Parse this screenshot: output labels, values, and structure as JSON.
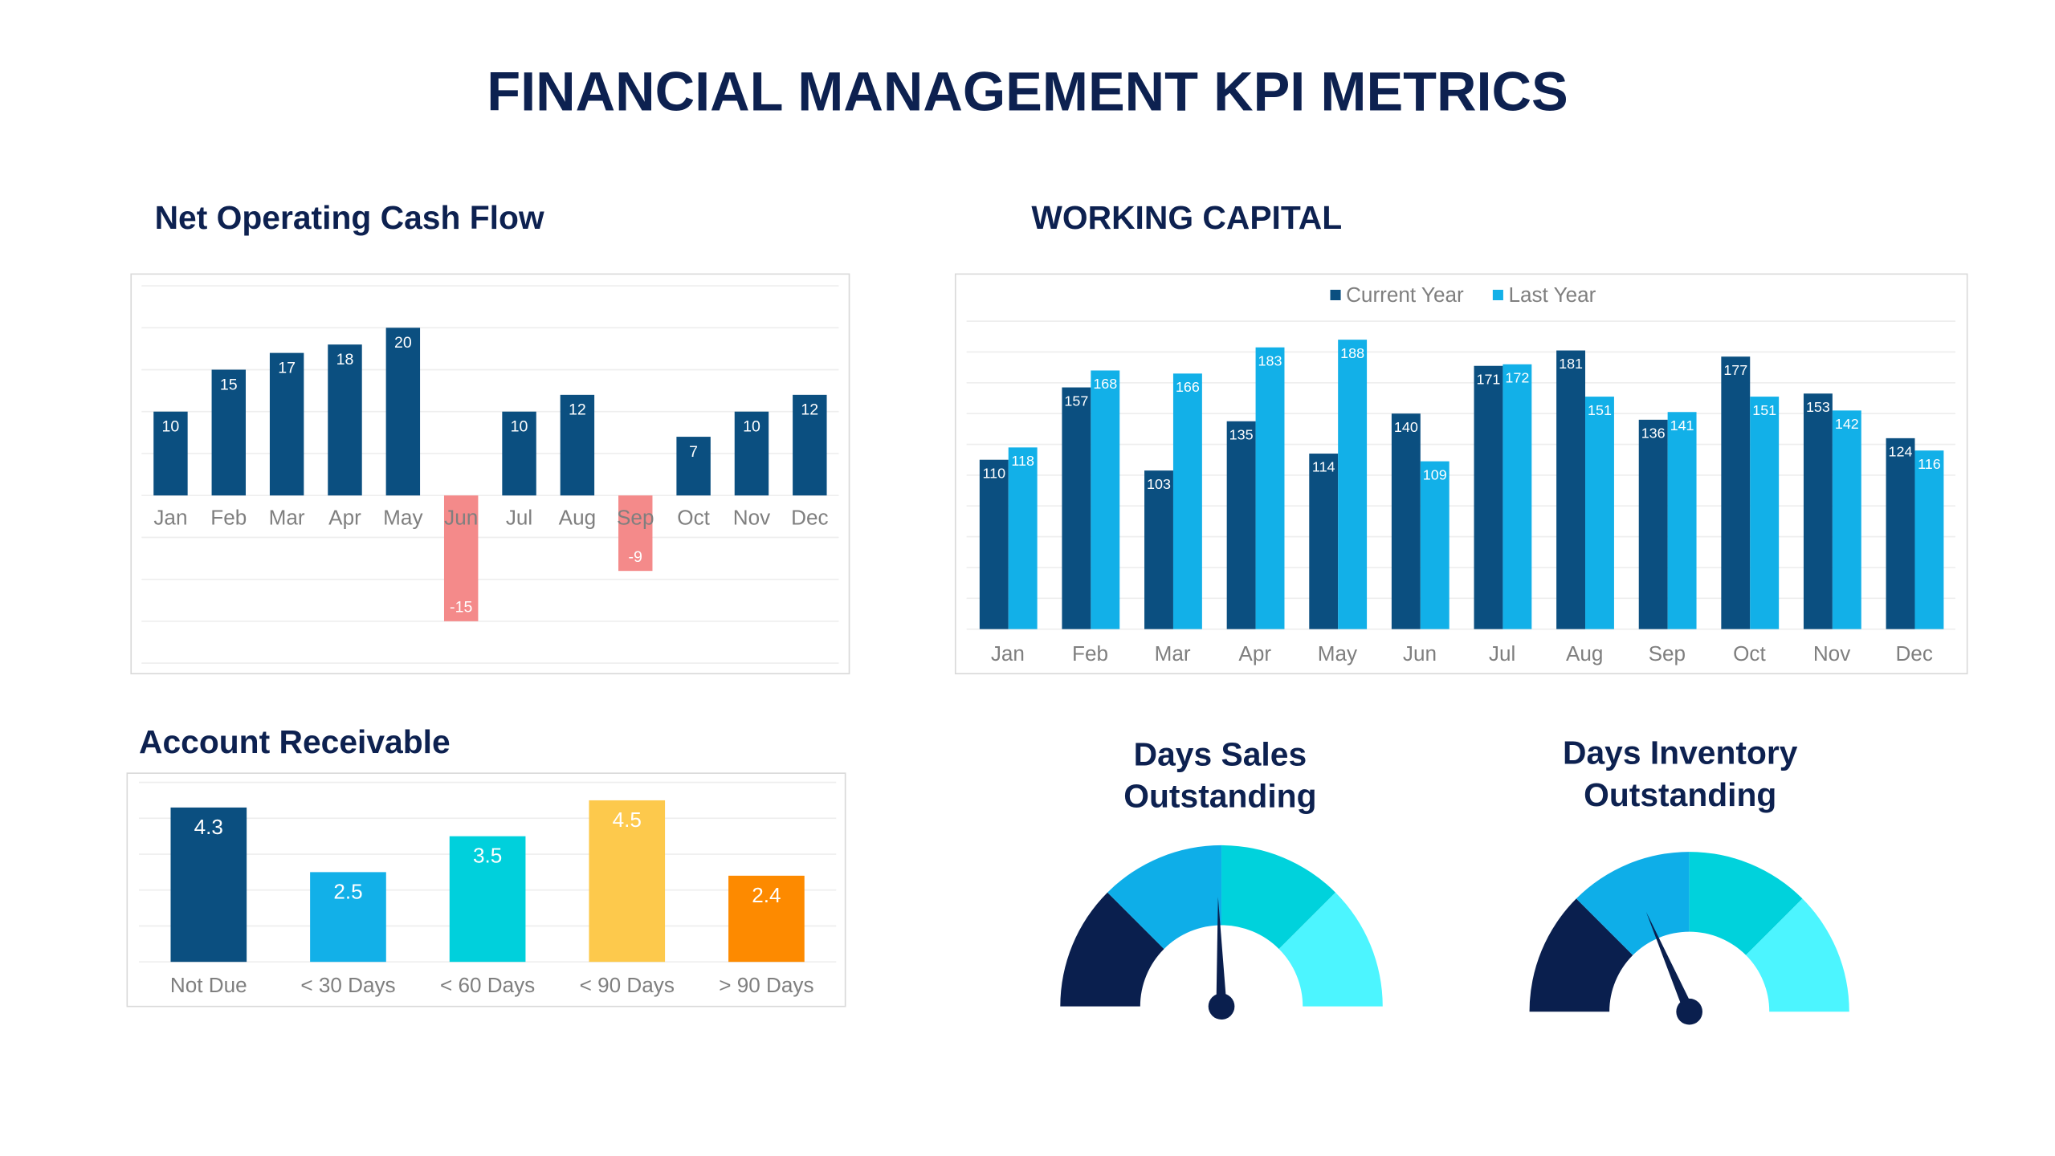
{
  "title": "FINANCIAL MANAGEMENT KPI METRICS",
  "chart_data": [
    {
      "type": "bar",
      "title": "Net Operating Cash Flow",
      "categories": [
        "Jan",
        "Feb",
        "Mar",
        "Apr",
        "May",
        "Jun",
        "Jul",
        "Aug",
        "Sep",
        "Oct",
        "Nov",
        "Dec"
      ],
      "values": [
        10,
        15,
        17,
        18,
        20,
        -15,
        10,
        12,
        -9,
        7,
        10,
        12
      ],
      "color": "#0b4f80",
      "negative_color": "#f48a8a",
      "ylim": [
        -20,
        25
      ],
      "yticks": [
        -20,
        -15,
        -10,
        -5,
        0,
        5,
        10,
        15,
        20,
        25
      ],
      "grid": true
    },
    {
      "type": "grouped_bar",
      "title": "WORKING CAPITAL",
      "categories": [
        "Jan",
        "Feb",
        "Mar",
        "Apr",
        "May",
        "Jun",
        "Jul",
        "Aug",
        "Sep",
        "Oct",
        "Nov",
        "Dec"
      ],
      "series": [
        {
          "name": "Current Year",
          "color": "#0b4f80",
          "values": [
            110,
            157,
            103,
            135,
            114,
            140,
            171,
            181,
            136,
            177,
            153,
            124
          ]
        },
        {
          "name": "Last Year",
          "color": "#12b0e8",
          "values": [
            118,
            168,
            166,
            183,
            188,
            109,
            172,
            151,
            141,
            151,
            142,
            116
          ]
        }
      ],
      "ylim": [
        0,
        200
      ],
      "yticks": [
        0,
        20,
        40,
        60,
        80,
        100,
        120,
        140,
        160,
        180,
        200
      ],
      "grid": true,
      "legend": "top"
    },
    {
      "type": "bar",
      "title": "Account Receivable",
      "categories": [
        "Not Due",
        "< 30 Days",
        "< 60 Days",
        "< 90 Days",
        "> 90 Days"
      ],
      "values": [
        4.3,
        2.5,
        3.5,
        4.5,
        2.4
      ],
      "colors": [
        "#0b4f80",
        "#12b0e8",
        "#00d0dc",
        "#fdc94c",
        "#fd8a00"
      ],
      "ylim": [
        0,
        5
      ],
      "yticks": [
        0,
        1,
        2,
        3,
        4,
        5
      ],
      "grid": true
    },
    {
      "type": "gauge",
      "title": "Days Sales Outstanding",
      "value": 49,
      "range": [
        0,
        100
      ],
      "colors": [
        "#0a1f4e",
        "#0eaee8",
        "#00d2dc",
        "#4cf5ff"
      ],
      "needle_color": "#0a1f4e"
    },
    {
      "type": "gauge",
      "title": "Days Inventory Outstanding",
      "value": 37,
      "range": [
        0,
        100
      ],
      "colors": [
        "#0a1f4e",
        "#0eaee8",
        "#00d2dc",
        "#4cf5ff"
      ],
      "needle_color": "#0a1f4e"
    }
  ]
}
